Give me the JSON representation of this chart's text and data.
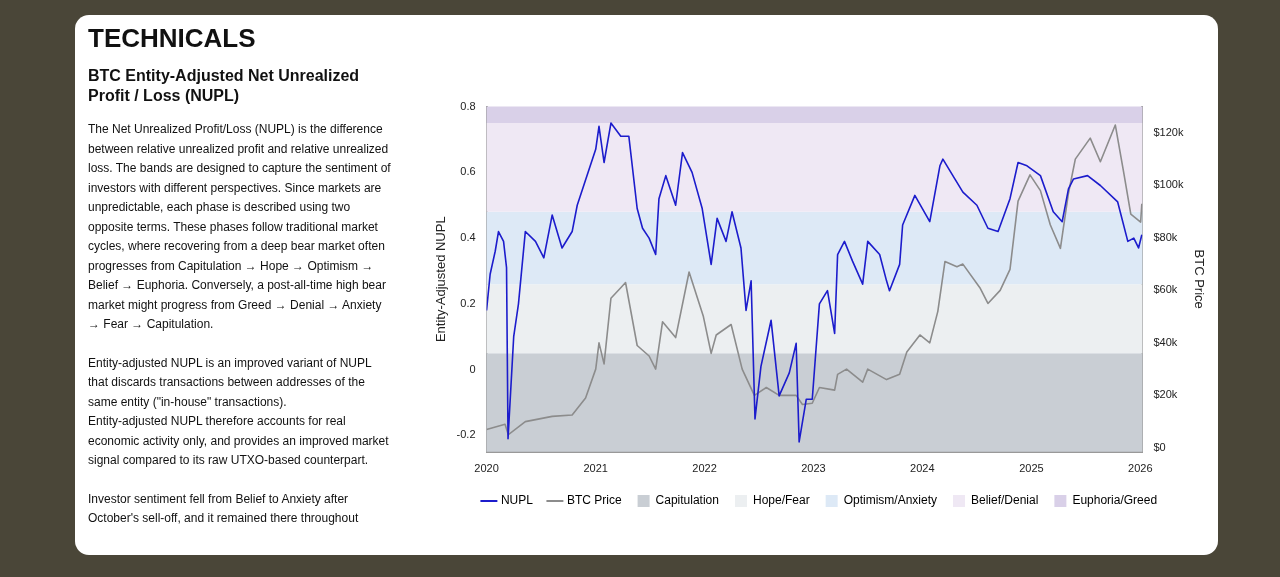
{
  "chart_data": {
    "type": "line",
    "title": "TECHNICALS",
    "subtitle": "BTC Entity-Adjusted Net Unrealized Profit / Loss (NUPL)",
    "annotations": [
      "The Net Unrealized Profit/Loss (NUPL) is the difference between relative unrealized profit and relative unrealized loss. The bands are designed to capture the sentiment of investors with different perspectives. Since markets are unpredictable, each phase is described using two opposite terms. These phases follow traditional market cycles, where recovering from a deep bear market often progresses from Capitulation → Hope → Optimism → Belief → Euphoria. Conversely, a post-all-time high bear market might progress from Greed → Denial → Anxiety → Fear → Capitulation.",
      "Entity-adjusted NUPL is an improved variant of NUPL that discards transactions between addresses of the same entity (\"in-house\" transactions).\nEntity-adjusted NUPL therefore accounts for real economic activity only, and provides an improved market signal compared to its raw UTXO-based counterpart.",
      "Investor sentiment fell from Belief to Anxiety after October's sell-off, and it remained there throughout"
    ],
    "ylabel": "Entity-Adjusted NUPL",
    "y2label": "BTC Price",
    "xlim": [
      "2020-01-01",
      "2026-01-08"
    ],
    "xticks": [
      "2020",
      "2021",
      "2022",
      "2023",
      "2024",
      "2025",
      "2026"
    ],
    "ylim": [
      -0.25,
      0.8
    ],
    "yticks": [
      -0.2,
      0,
      0.2,
      0.4,
      0.6,
      0.8
    ],
    "y2lim": [
      -1500,
      130000
    ],
    "y2ticks": [
      {
        "value": 0,
        "label": "$0"
      },
      {
        "value": 20000,
        "label": "$20k"
      },
      {
        "value": 40000,
        "label": "$40k"
      },
      {
        "value": 60000,
        "label": "$60k"
      },
      {
        "value": 80000,
        "label": "$80k"
      },
      {
        "value": 100000,
        "label": "$100k"
      },
      {
        "value": 120000,
        "label": "$120k"
      }
    ],
    "grid": false,
    "legend": "bottom",
    "marker": "none",
    "line_style": "solid",
    "bands": [
      {
        "axis": "y",
        "from": -0.25,
        "to": 0.05,
        "label": "Capitulation",
        "color": "#c9ced4"
      },
      {
        "axis": "y",
        "from": 0.05,
        "to": 0.26,
        "label": "Hope/Fear",
        "color": "#eceff1"
      },
      {
        "axis": "y",
        "from": 0.26,
        "to": 0.48,
        "label": "Optimism/Anxiety",
        "color": "#dde9f6"
      },
      {
        "axis": "y",
        "from": 0.48,
        "to": 0.75,
        "label": "Belief/Denial",
        "color": "#efe8f4"
      },
      {
        "axis": "y",
        "from": 0.75,
        "to": 0.8,
        "label": "Euphoria/Greed",
        "color": "#d9d0e8"
      }
    ],
    "series": [
      {
        "name": "NUPL",
        "color": "#1c1ccc",
        "x": [
          "2020-01-01",
          "2020-01-13",
          "2020-01-30",
          "2020-02-10",
          "2020-02-27",
          "2020-03-08",
          "2020-03-13",
          "2020-04-01",
          "2020-04-17",
          "2020-05-10",
          "2020-06-13",
          "2020-07-11",
          "2020-08-08",
          "2020-09-10",
          "2020-10-14",
          "2020-10-31",
          "2020-11-29",
          "2021-01-01",
          "2021-01-12",
          "2021-01-29",
          "2021-02-21",
          "2021-03-26",
          "2021-04-22",
          "2021-05-20",
          "2021-06-07",
          "2021-06-29",
          "2021-07-21",
          "2021-08-01",
          "2021-08-24",
          "2021-09-26",
          "2021-10-19",
          "2021-11-20",
          "2021-12-24",
          "2022-01-23",
          "2022-02-12",
          "2022-03-14",
          "2022-04-03",
          "2022-05-03",
          "2022-05-20",
          "2022-06-06",
          "2022-06-19",
          "2022-07-09",
          "2022-08-12",
          "2022-09-08",
          "2022-10-12",
          "2022-11-04",
          "2022-11-14",
          "2022-12-08",
          "2022-12-28",
          "2023-01-21",
          "2023-02-17",
          "2023-03-13",
          "2023-03-23",
          "2023-04-15",
          "2023-05-12",
          "2023-06-15",
          "2023-07-02",
          "2023-08-11",
          "2023-09-03",
          "2023-09-13",
          "2023-10-17",
          "2023-10-27",
          "2023-12-07",
          "2024-01-26",
          "2024-02-29",
          "2024-03-10",
          "2024-04-19",
          "2024-05-16",
          "2024-07-02",
          "2024-08-08",
          "2024-09-11",
          "2024-10-21",
          "2024-11-17",
          "2024-12-17",
          "2025-01-31",
          "2025-03-15",
          "2025-04-14",
          "2025-05-05",
          "2025-05-22",
          "2025-07-08",
          "2025-08-20",
          "2025-10-17",
          "2025-11-20",
          "2025-12-10",
          "2025-12-26",
          "2026-01-06"
        ],
        "values": [
          0.18,
          0.29,
          0.36,
          0.42,
          0.39,
          0.31,
          -0.21,
          0.1,
          0.2,
          0.42,
          0.39,
          0.34,
          0.47,
          0.37,
          0.42,
          0.5,
          0.58,
          0.67,
          0.74,
          0.63,
          0.75,
          0.71,
          0.71,
          0.49,
          0.43,
          0.4,
          0.35,
          0.52,
          0.59,
          0.5,
          0.66,
          0.6,
          0.49,
          0.32,
          0.46,
          0.39,
          0.48,
          0.37,
          0.18,
          0.27,
          -0.15,
          0.01,
          0.15,
          -0.08,
          -0.01,
          0.08,
          -0.22,
          -0.09,
          -0.09,
          0.2,
          0.24,
          0.11,
          0.35,
          0.39,
          0.33,
          0.26,
          0.39,
          0.35,
          0.27,
          0.24,
          0.32,
          0.44,
          0.53,
          0.45,
          0.62,
          0.64,
          0.58,
          0.54,
          0.5,
          0.43,
          0.42,
          0.52,
          0.63,
          0.62,
          0.59,
          0.48,
          0.45,
          0.55,
          0.58,
          0.59,
          0.56,
          0.51,
          0.39,
          0.4,
          0.37,
          0.41
        ]
      },
      {
        "name": "BTC Price",
        "color": "#8c8c8c",
        "axis": "y2",
        "x": [
          "2020-01-01",
          "2020-03-03",
          "2020-03-14",
          "2020-05-10",
          "2020-08-08",
          "2020-10-14",
          "2020-11-28",
          "2021-01-01",
          "2021-01-12",
          "2021-01-29",
          "2021-02-21",
          "2021-03-26",
          "2021-04-11",
          "2021-05-20",
          "2021-06-29",
          "2021-07-21",
          "2021-08-13",
          "2021-09-26",
          "2021-11-10",
          "2021-12-28",
          "2022-01-23",
          "2022-02-09",
          "2022-03-31",
          "2022-05-07",
          "2022-06-17",
          "2022-07-27",
          "2022-09-08",
          "2022-11-04",
          "2022-11-25",
          "2022-12-28",
          "2023-01-21",
          "2023-03-13",
          "2023-03-23",
          "2023-04-22",
          "2023-06-15",
          "2023-07-02",
          "2023-09-03",
          "2023-10-17",
          "2023-11-10",
          "2023-12-24",
          "2024-01-26",
          "2024-02-22",
          "2024-03-17",
          "2024-04-26",
          "2024-05-16",
          "2024-07-12",
          "2024-08-08",
          "2024-09-18",
          "2024-10-21",
          "2024-11-17",
          "2024-12-27",
          "2025-01-31",
          "2025-03-05",
          "2025-04-08",
          "2025-05-05",
          "2025-05-28",
          "2025-07-17",
          "2025-08-20",
          "2025-10-09",
          "2025-11-06",
          "2025-11-30",
          "2026-01-02",
          "2026-01-06"
        ],
        "values": [
          7000,
          9000,
          5000,
          10000,
          12000,
          12500,
          19000,
          30000,
          40000,
          32000,
          57000,
          61000,
          63000,
          39000,
          35000,
          30000,
          48000,
          42000,
          67000,
          50000,
          36000,
          43000,
          47000,
          30000,
          20000,
          23000,
          20000,
          20000,
          16500,
          17000,
          23000,
          22000,
          28000,
          30000,
          25000,
          30000,
          26000,
          28000,
          36500,
          43000,
          40000,
          52000,
          71000,
          69000,
          70000,
          61000,
          55000,
          60000,
          68000,
          94000,
          104000,
          98000,
          85000,
          76000,
          97000,
          110000,
          118000,
          109000,
          123000,
          105000,
          89000,
          86000,
          93000
        ]
      }
    ]
  }
}
